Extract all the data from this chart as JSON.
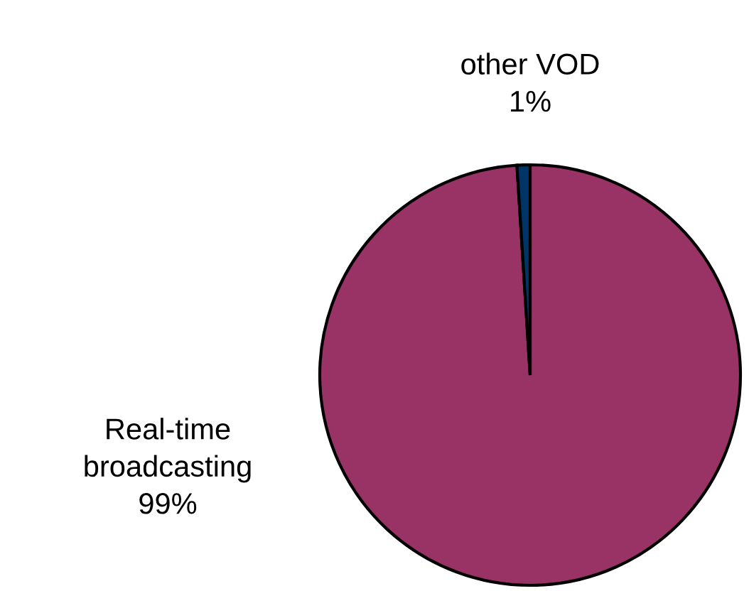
{
  "chart_data": {
    "type": "pie",
    "categories": [
      "Real-time broadcasting",
      "other VOD"
    ],
    "values": [
      99,
      1
    ],
    "colors": [
      "#993366",
      "#003366"
    ],
    "value_labels": [
      "99%",
      "1%"
    ]
  }
}
